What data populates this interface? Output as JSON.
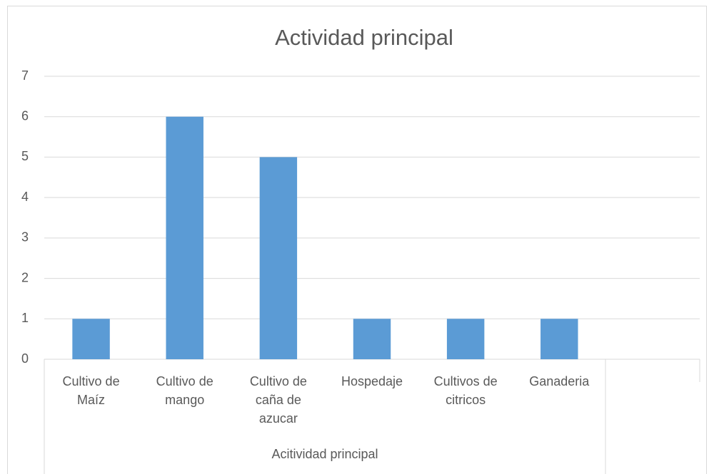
{
  "chart_data": {
    "type": "bar",
    "title": "Actividad principal",
    "categories": [
      "Cultivo de Maíz",
      "Cultivo de mango",
      "Cultivo de caña de azucar",
      "Hospedaje",
      "Cultivos de citricos",
      "Ganaderia",
      null
    ],
    "values": [
      1,
      6,
      5,
      1,
      1,
      1,
      null
    ],
    "group_label": "Acitividad principal",
    "color": "#5b9bd5",
    "ylim": [
      0,
      7
    ],
    "yticks": [
      0,
      1,
      2,
      3,
      4,
      5,
      6,
      7
    ],
    "grid": true
  }
}
